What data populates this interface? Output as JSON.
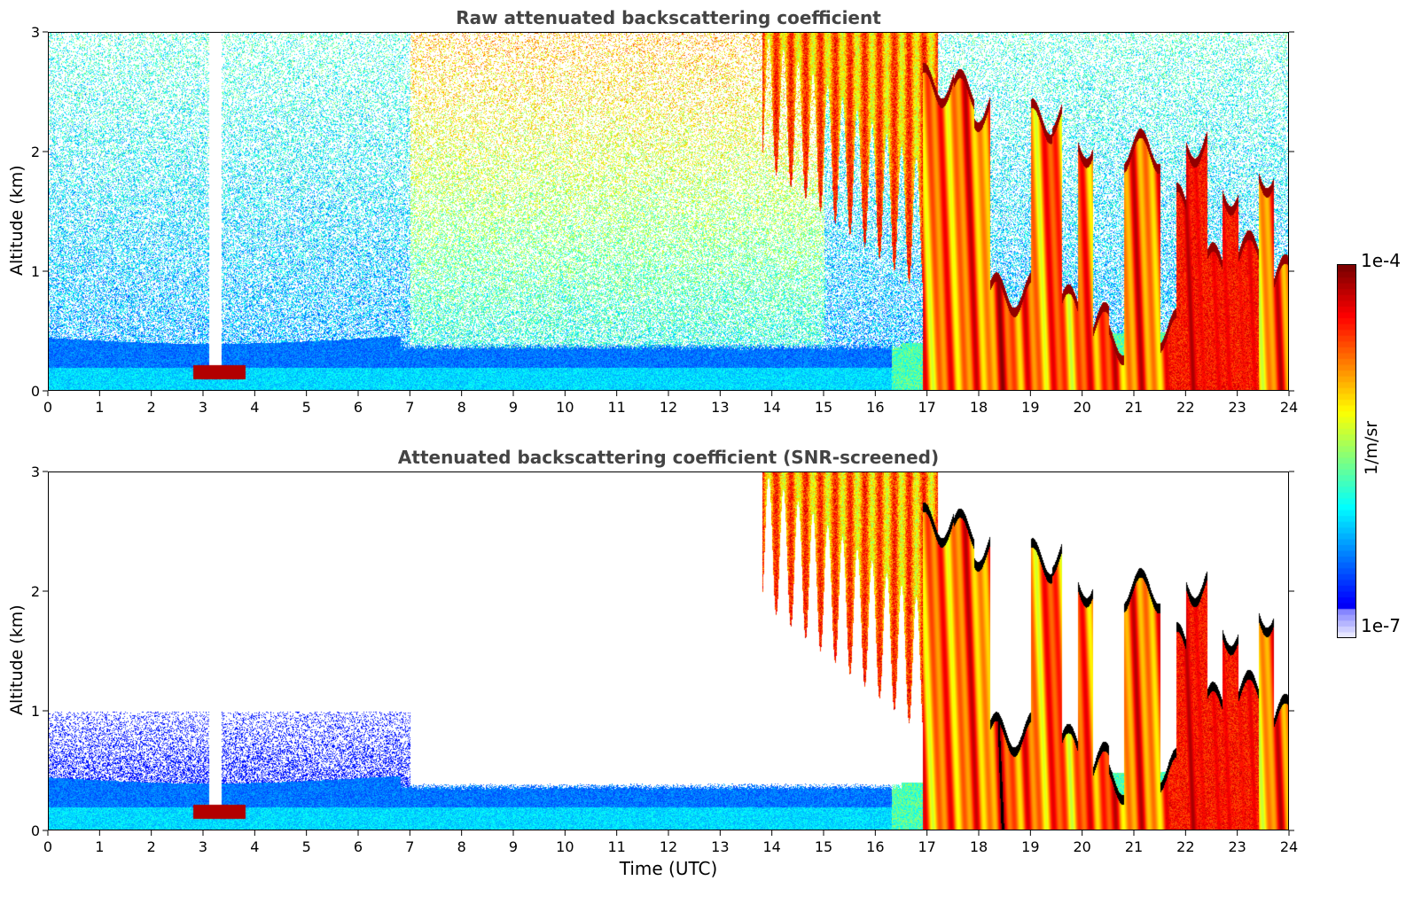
{
  "chart_data": [
    {
      "type": "heatmap",
      "title": "Raw attenuated backscattering coefficient",
      "xlabel": "",
      "ylabel": "Altitude (km)",
      "xlim": [
        0,
        24
      ],
      "ylim": [
        0,
        3
      ],
      "x_ticks": [
        "0",
        "1",
        "2",
        "3",
        "4",
        "5",
        "6",
        "7",
        "8",
        "9",
        "10",
        "11",
        "12",
        "13",
        "14",
        "15",
        "16",
        "17",
        "18",
        "19",
        "20",
        "21",
        "22",
        "23",
        "24"
      ],
      "y_ticks": [
        "0",
        "1",
        "2",
        "3"
      ],
      "snr_screened": false
    },
    {
      "type": "heatmap",
      "title": "Attenuated backscattering coefficient (SNR-screened)",
      "xlabel": "Time (UTC)",
      "ylabel": "Altitude (km)",
      "xlim": [
        0,
        24
      ],
      "ylim": [
        0,
        3
      ],
      "x_ticks": [
        "0",
        "1",
        "2",
        "3",
        "4",
        "5",
        "6",
        "7",
        "8",
        "9",
        "10",
        "11",
        "12",
        "13",
        "14",
        "15",
        "16",
        "17",
        "18",
        "19",
        "20",
        "21",
        "22",
        "23",
        "24"
      ],
      "y_ticks": [
        "0",
        "1",
        "2",
        "3"
      ],
      "snr_screened": true
    }
  ],
  "colorbar": {
    "label": "1/m/sr",
    "max_label": "1e-4",
    "min_label": "1e-7",
    "colormap": "jet",
    "scale": "log",
    "range": [
      1e-07,
      0.0001
    ]
  },
  "colors": {
    "title": "#444444",
    "axis": "#000000"
  }
}
